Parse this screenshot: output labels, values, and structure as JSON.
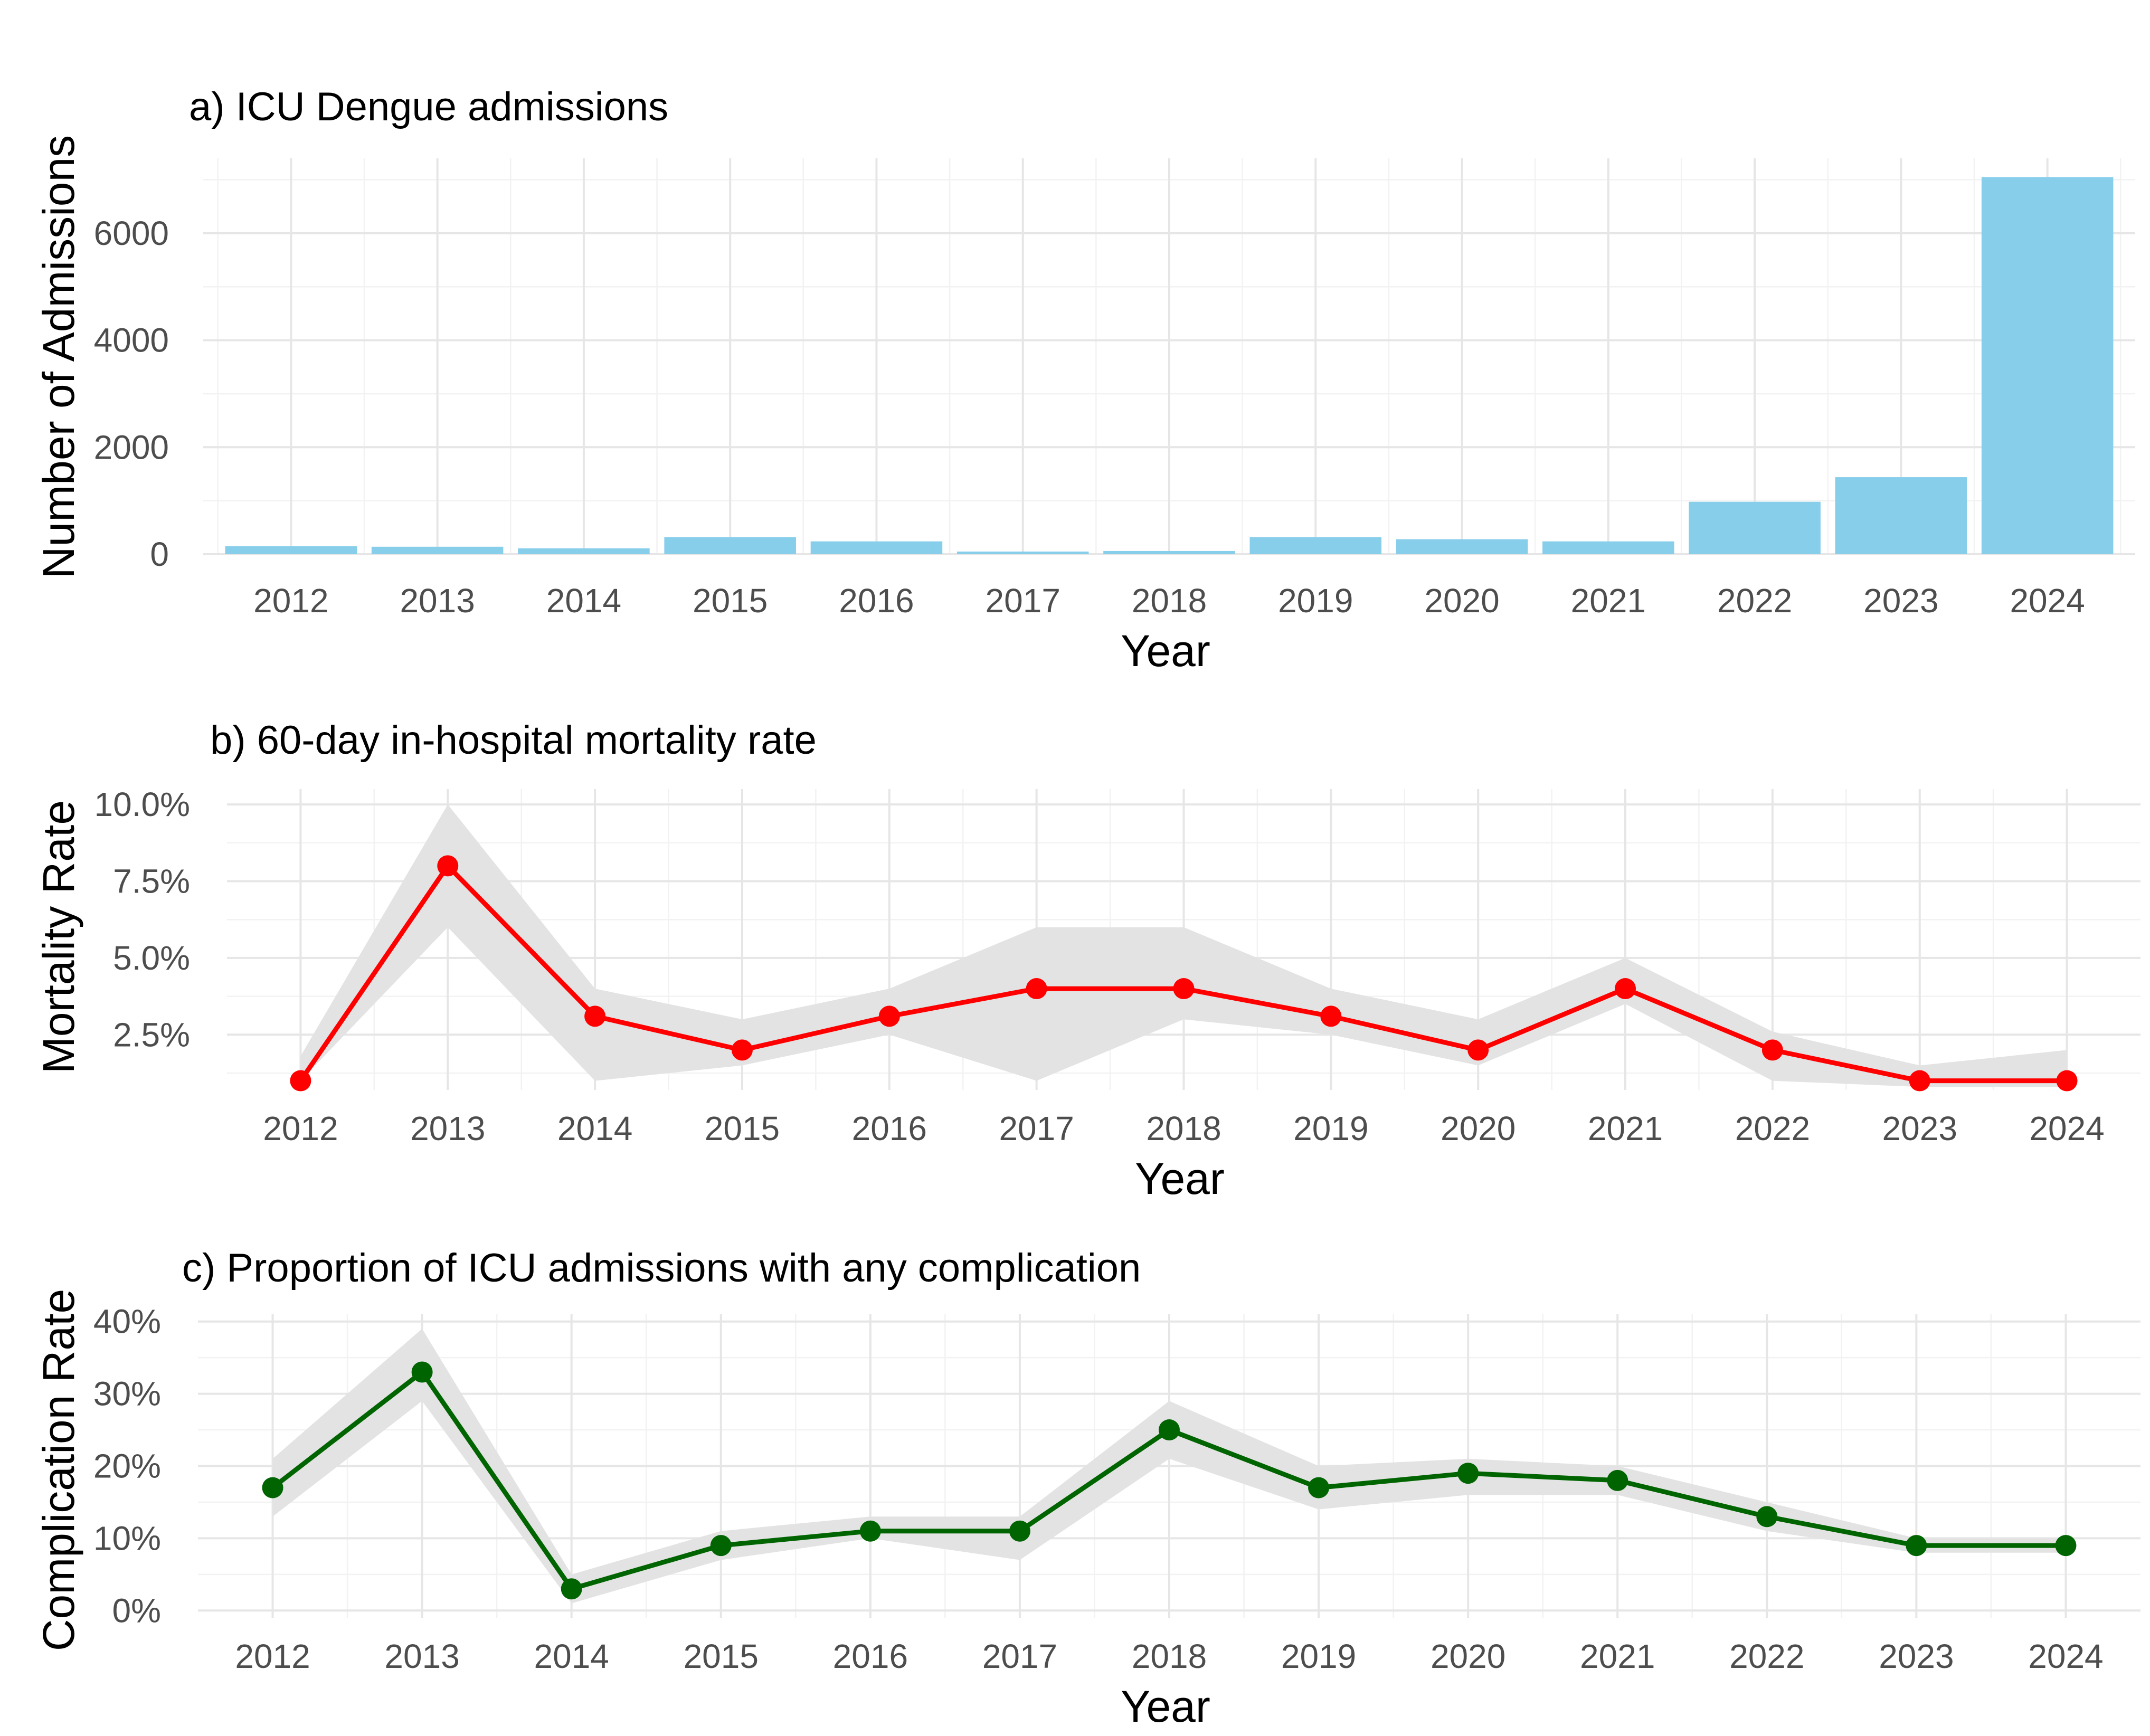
{
  "chart_data": [
    {
      "type": "bar",
      "title": "a) ICU Dengue admissions",
      "xlabel": "Year",
      "ylabel": "Number of Admissions",
      "categories": [
        "2012",
        "2013",
        "2014",
        "2015",
        "2016",
        "2017",
        "2018",
        "2019",
        "2020",
        "2021",
        "2022",
        "2023",
        "2024"
      ],
      "values": [
        150,
        140,
        110,
        320,
        240,
        50,
        60,
        320,
        280,
        240,
        980,
        1440,
        7050
      ],
      "ylim": [
        0,
        7400
      ],
      "yticks": [
        0,
        2000,
        4000,
        6000
      ],
      "ytick_labels": [
        "0",
        "2000",
        "4000",
        "6000"
      ],
      "grid": true,
      "colors": {
        "bar": "#87ceeb"
      }
    },
    {
      "type": "line",
      "title": "b) 60-day in-hospital mortality rate",
      "xlabel": "Year",
      "ylabel": "Mortality Rate",
      "x": [
        "2012",
        "2013",
        "2014",
        "2015",
        "2016",
        "2017",
        "2018",
        "2019",
        "2020",
        "2021",
        "2022",
        "2023",
        "2024"
      ],
      "values": [
        1.0,
        8.0,
        3.1,
        2.0,
        3.1,
        4.0,
        4.0,
        3.1,
        2.0,
        4.0,
        2.0,
        1.0,
        1.0
      ],
      "lower": [
        1.0,
        6.0,
        1.0,
        1.5,
        2.5,
        1.0,
        3.0,
        2.5,
        1.5,
        3.5,
        1.0,
        0.8,
        0.8
      ],
      "upper": [
        1.8,
        10.0,
        4.0,
        3.0,
        4.0,
        6.0,
        6.0,
        4.0,
        3.0,
        5.0,
        2.6,
        1.5,
        2.0
      ],
      "ylim": [
        0.7,
        10.5
      ],
      "yticks": [
        2.5,
        5.0,
        7.5,
        10.0
      ],
      "ytick_labels": [
        "2.5%",
        "5.0%",
        "7.5%",
        "10.0%"
      ],
      "grid": true,
      "colors": {
        "line": "#ff0000",
        "ribbon": "#e3e3e3"
      }
    },
    {
      "type": "line",
      "title": "c) Proportion of ICU admissions with any complication",
      "xlabel": "Year",
      "ylabel": "Complication Rate",
      "x": [
        "2012",
        "2013",
        "2014",
        "2015",
        "2016",
        "2017",
        "2018",
        "2019",
        "2020",
        "2021",
        "2022",
        "2023",
        "2024"
      ],
      "values": [
        17,
        33,
        3,
        9,
        11,
        11,
        25,
        17,
        19,
        18,
        13,
        9,
        9
      ],
      "lower": [
        13,
        29,
        1,
        7,
        10,
        7,
        21,
        14,
        16,
        16,
        11,
        8,
        8
      ],
      "upper": [
        21,
        39,
        5,
        11,
        13,
        13,
        29,
        20,
        21,
        20,
        15,
        10,
        10
      ],
      "ylim": [
        -1,
        41
      ],
      "yticks": [
        0,
        10,
        20,
        30,
        40
      ],
      "ytick_labels": [
        "0%",
        "10%",
        "20%",
        "30%",
        "40%"
      ],
      "grid": true,
      "colors": {
        "line": "#006400",
        "ribbon": "#e3e3e3"
      }
    }
  ]
}
